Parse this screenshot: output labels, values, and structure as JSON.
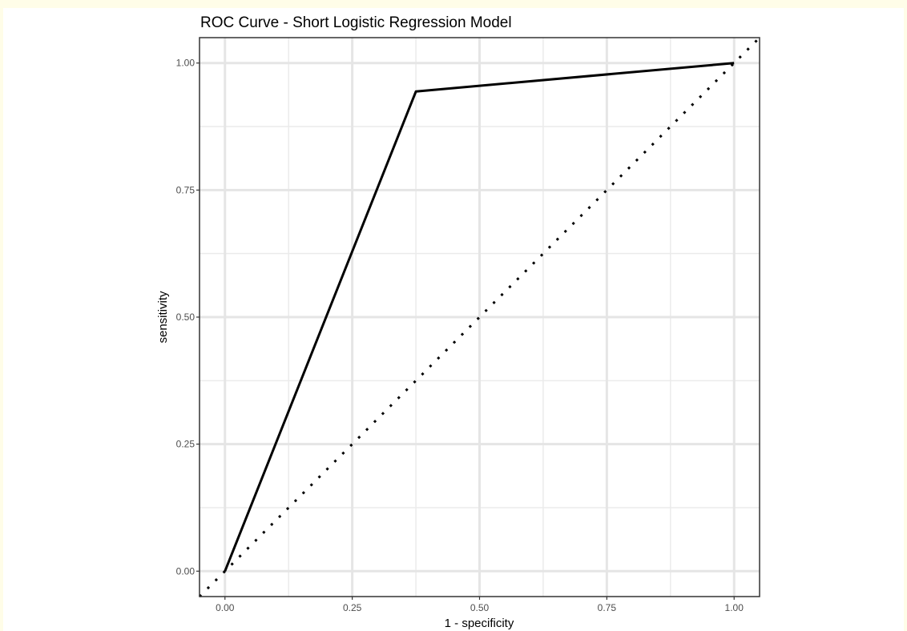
{
  "chart_data": {
    "type": "line",
    "title": "ROC Curve - Short Logistic Regression Model",
    "xlabel": "1 - specificity",
    "ylabel": "sensitivity",
    "xlim": [
      -0.05,
      1.05
    ],
    "ylim": [
      -0.05,
      1.05
    ],
    "x_ticks": [
      "0.00",
      "0.25",
      "0.50",
      "0.75",
      "1.00"
    ],
    "y_ticks": [
      "0.00",
      "0.25",
      "0.50",
      "0.75",
      "1.00"
    ],
    "grid": true,
    "series": [
      {
        "style": "solid",
        "color": "#000000",
        "x": [
          0.0,
          0.375,
          1.0
        ],
        "y": [
          0.0,
          0.944,
          1.0
        ]
      },
      {
        "style": "dotted",
        "color": "#000000",
        "x": [
          -0.05,
          1.05
        ],
        "y": [
          -0.05,
          1.05
        ]
      }
    ]
  }
}
